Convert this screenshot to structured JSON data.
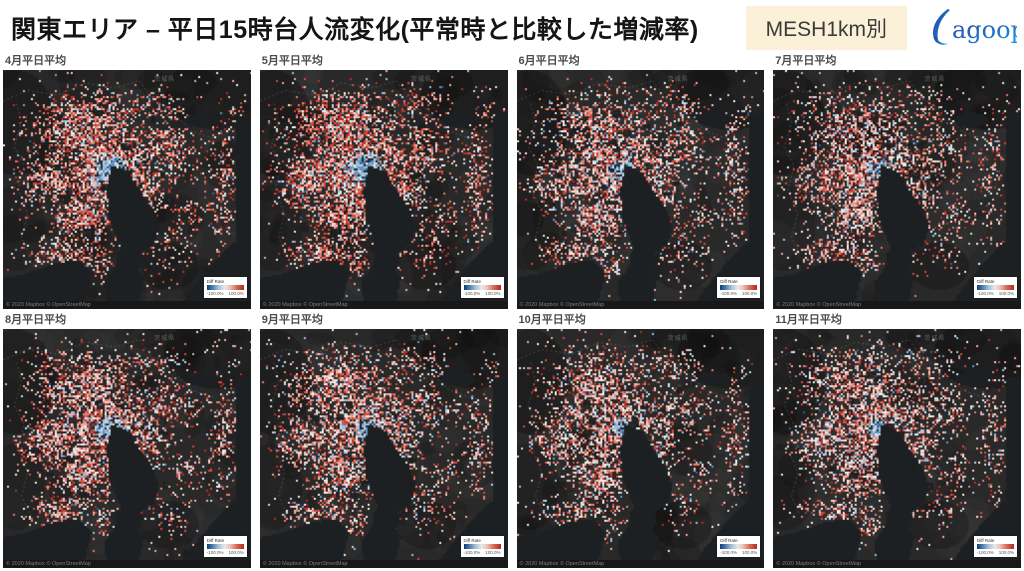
{
  "header": {
    "title": "関東エリア – 平日15時台人流変化(平常時と比較した増減率)",
    "badge": "MESH1km別",
    "logo_text": "agoop"
  },
  "map_common": {
    "prefecture_label": "茨城県",
    "attribution": "© 2020 Mapbox © OpenStreetMap",
    "legend": {
      "title": "Diff Rate",
      "min_label": "-100.0%",
      "max_label": "100.0%"
    },
    "colors": {
      "land": "#292929",
      "water": "#1d2023",
      "mesh_reds": [
        "#b23023",
        "#d04a3c",
        "#e27f70",
        "#eeaca0",
        "#f4cfc7"
      ],
      "mesh_neutral": "#efece6",
      "mesh_blues": [
        "#c7d9e8",
        "#9bc0da",
        "#6694c2",
        "#2e5e93",
        "#1d3e66"
      ],
      "badge_bg": "#faf1d8",
      "logo_blue_dark": "#2b3f9f",
      "logo_blue_light": "#17a7e0"
    }
  },
  "panels": [
    {
      "label": "4月平日平均",
      "render": {
        "seed": 41,
        "red": 0.85,
        "blue": 0.95,
        "density": 0.97
      }
    },
    {
      "label": "5月平日平均",
      "render": {
        "seed": 52,
        "red": 0.95,
        "blue": 1.0,
        "density": 1.0
      }
    },
    {
      "label": "6月平日平均",
      "render": {
        "seed": 63,
        "red": 0.55,
        "blue": 0.72,
        "density": 0.9
      }
    },
    {
      "label": "7月平日平均",
      "render": {
        "seed": 74,
        "red": 0.5,
        "blue": 0.64,
        "density": 0.86
      }
    },
    {
      "label": "8月平日平均",
      "render": {
        "seed": 85,
        "red": 0.65,
        "blue": 0.76,
        "density": 0.9
      }
    },
    {
      "label": "9月平日平均",
      "render": {
        "seed": 96,
        "red": 0.6,
        "blue": 0.7,
        "density": 0.9
      }
    },
    {
      "label": "10月平日平均",
      "render": {
        "seed": 107,
        "red": 0.5,
        "blue": 0.62,
        "density": 0.86
      }
    },
    {
      "label": "11月平日平均",
      "render": {
        "seed": 118,
        "red": 0.45,
        "blue": 0.58,
        "density": 0.85
      }
    }
  ],
  "chart_data": {
    "type": "heatmap",
    "title": "関東エリア – 平日15時台人流変化(平常時と比較した増減率)",
    "subtitle": "MESH1km別",
    "layout": "2x4 small-multiple choropleth mesh maps of the Kanto region (Tokyo Bay visible in each panel)",
    "panels": [
      "4月平日平均",
      "5月平日平均",
      "6月平日平均",
      "7月平日平均",
      "8月平日平均",
      "9月平日平均",
      "10月平日平均",
      "11月平日平均"
    ],
    "legend": {
      "label": "Diff Rate",
      "min": -100.0,
      "max": 100.0,
      "unit": "%",
      "colormap": "blue (decrease) → white (no change) → red (increase)"
    },
    "observations": "Suburban mesh cells are predominantly red (population increase vs normal) while central Tokyo around the bay head is blue (decrease); red intensity is strongest in April–May and paler from June to November."
  }
}
